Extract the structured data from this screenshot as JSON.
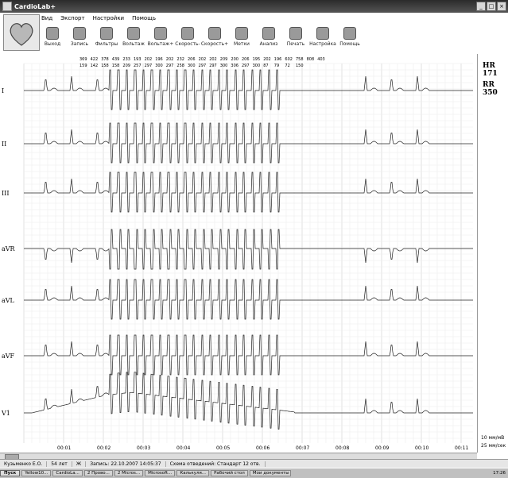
{
  "window": {
    "title": "CardioLab+"
  },
  "menu": [
    "Вид",
    "Экспорт",
    "Настройки",
    "Помощь"
  ],
  "toolbar": [
    "Выход",
    "Запись",
    "Фильтры",
    "Вольтаж",
    "Вольтаж+",
    "Скорость-",
    "Скорость+",
    "Метки",
    "Анализ",
    "Печать",
    "Настройка",
    "Помощь"
  ],
  "chart_data": {
    "type": "ecg",
    "leads": [
      "I",
      "II",
      "III",
      "aVR",
      "aVL",
      "aVF",
      "V1"
    ],
    "time_ticks": [
      "00:01",
      "00:02",
      "00:03",
      "00:04",
      "00:05",
      "00:06",
      "00:07",
      "00:08",
      "00:09",
      "00:10",
      "00:11"
    ],
    "interval_labels_top": [
      "369",
      "422",
      "378",
      "439",
      "233",
      "193",
      "202",
      "196",
      "202",
      "232",
      "206",
      "202",
      "202",
      "209",
      "200",
      "206",
      "195",
      "202",
      "196",
      "602",
      "758",
      "808",
      "403"
    ],
    "interval_labels_bottom": [
      "159",
      "142",
      "158",
      "158",
      "209",
      "257",
      "297",
      "300",
      "297",
      "258",
      "300",
      "297",
      "297",
      "300",
      "306",
      "297",
      "300",
      "87",
      "79",
      "72",
      "150"
    ]
  },
  "side": {
    "hr": "HR 171",
    "rr": "RR 350",
    "scale1": "10 мм/мВ",
    "scale2": "25 мм/сек"
  },
  "status": [
    "Кузьменко Е.О.",
    "54 лет",
    "Ж",
    "Запись: 22.10.2007 14:05:37",
    "Схема отведений: Стандарт 12 отв."
  ],
  "taskbar": {
    "start": "Пуск",
    "tasks": [
      "Yellow10...",
      "CardioLa...",
      "2 Прово...",
      "2 Micros...",
      "Microsoft...",
      "Калькуля...",
      "Рабочий стол",
      "Мои документы"
    ],
    "clock": "17:26"
  }
}
